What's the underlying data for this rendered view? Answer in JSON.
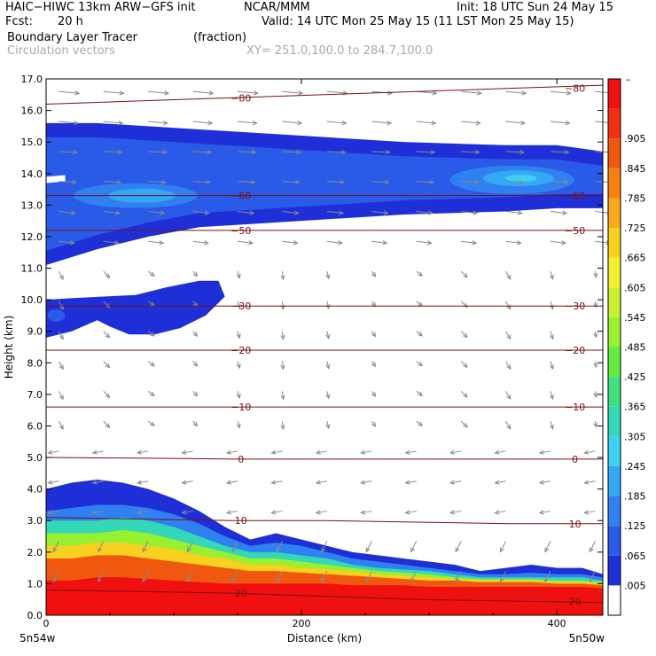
{
  "header": {
    "model": "HAIC−HIWC 13km ARW−GFS init",
    "org": "NCAR/MMM",
    "init": "Init: 18 UTC Sun 24 May 15",
    "fcst_label": "Fcst:",
    "fcst_value": "20 h",
    "valid": "Valid: 14 UTC Mon 25 May 15 (11 LST Mon 25 May 15)",
    "field": "Boundary Layer Tracer",
    "field_units": "(fraction)",
    "vectors": "Circulation vectors",
    "xy": "XY= 251.0,100.0 to 284.7,100.0"
  },
  "chart_data": {
    "type": "heatmap",
    "title": "Boundary Layer Tracer (fraction)",
    "xlabel": "Distance (km)",
    "ylabel": "Height (km)",
    "xlim": [
      0,
      436
    ],
    "ylim": [
      0,
      17
    ],
    "x_ticks": [
      "0",
      "200",
      "400"
    ],
    "y_ticks": [
      "0.0",
      "1.0",
      "2.0",
      "3.0",
      "4.0",
      "5.0",
      "6.0",
      "7.0",
      "8.0",
      "9.0",
      "10.0",
      "11.0",
      "12.0",
      "13.0",
      "14.0",
      "15.0",
      "16.0",
      "17.0"
    ],
    "x_end_labels": {
      "left": "5n54w",
      "right": "5n50w"
    },
    "colorbar_labels": [
      ".005",
      ".065",
      ".125",
      ".185",
      ".245",
      ".305",
      ".365",
      ".425",
      ".485",
      ".545",
      ".605",
      ".665",
      ".725",
      ".785",
      ".845",
      ".905"
    ],
    "colorbar_top_label": "–",
    "colorbar_colors": [
      "#ffffff",
      "#1f2fd8",
      "#2a5ae8",
      "#2f80f0",
      "#35a8f5",
      "#3dd0f0",
      "#33d8b8",
      "#40e080",
      "#60ec40",
      "#98f030",
      "#c8f030",
      "#f0f030",
      "#f8d020",
      "#f8a818",
      "#f88010",
      "#f05810",
      "#f03010",
      "#f01010"
    ],
    "temperature_contours": [
      {
        "label": "20",
        "z": [
          0.8,
          0.75,
          0.7,
          0.6,
          0.5,
          0.45,
          0.4
        ]
      },
      {
        "label": "10",
        "z": [
          3.1,
          3.05,
          3.0,
          3.0,
          2.95,
          2.9,
          2.9
        ]
      },
      {
        "label": "0",
        "z": [
          5.0,
          4.98,
          4.95,
          4.95,
          4.95,
          4.95,
          4.95
        ]
      },
      {
        "label": "−10",
        "z": [
          6.6,
          6.6,
          6.6,
          6.6,
          6.6,
          6.6,
          6.6
        ]
      },
      {
        "label": "−20",
        "z": [
          8.4,
          8.4,
          8.4,
          8.4,
          8.4,
          8.4,
          8.4
        ]
      },
      {
        "label": "−30",
        "z": [
          9.8,
          9.8,
          9.8,
          9.8,
          9.8,
          9.8,
          9.8
        ]
      },
      {
        "label": "−50",
        "z": [
          12.2,
          12.2,
          12.2,
          12.2,
          12.2,
          12.2,
          12.2
        ]
      },
      {
        "label": "−60",
        "z": [
          13.3,
          13.3,
          13.3,
          13.3,
          13.3,
          13.3,
          13.3
        ]
      },
      {
        "label": "−80",
        "z": [
          16.2,
          16.3,
          16.4,
          16.5,
          16.6,
          16.7,
          16.8
        ]
      }
    ],
    "contour_x": [
      0,
      72,
      145,
      218,
      290,
      363,
      436
    ],
    "tracer_layers": {
      "x": [
        0,
        20,
        40,
        60,
        80,
        100,
        120,
        140,
        160,
        180,
        200,
        220,
        240,
        260,
        280,
        300,
        320,
        340,
        360,
        380,
        400,
        420,
        436
      ],
      "boundary_top": [
        4.0,
        4.2,
        4.3,
        4.2,
        4.0,
        3.7,
        3.3,
        2.8,
        2.4,
        2.6,
        2.4,
        2.2,
        2.0,
        1.9,
        1.8,
        1.7,
        1.6,
        1.4,
        1.5,
        1.6,
        1.5,
        1.5,
        1.3
      ],
      "levels": [
        {
          "value": 0.005,
          "top": [
            4.0,
            4.2,
            4.3,
            4.2,
            4.0,
            3.7,
            3.3,
            2.8,
            2.4,
            2.6,
            2.4,
            2.2,
            2.0,
            1.9,
            1.8,
            1.7,
            1.6,
            1.4,
            1.5,
            1.6,
            1.5,
            1.5,
            1.3
          ]
        },
        {
          "value": 0.125,
          "top": [
            3.3,
            3.4,
            3.5,
            3.5,
            3.4,
            3.2,
            2.9,
            2.5,
            2.2,
            2.3,
            2.2,
            2.0,
            1.8,
            1.7,
            1.6,
            1.5,
            1.4,
            1.3,
            1.3,
            1.35,
            1.3,
            1.3,
            1.2
          ]
        },
        {
          "value": 0.305,
          "top": [
            3.0,
            3.0,
            3.0,
            3.1,
            3.0,
            2.8,
            2.5,
            2.2,
            2.0,
            2.0,
            1.9,
            1.8,
            1.6,
            1.5,
            1.45,
            1.4,
            1.3,
            1.2,
            1.2,
            1.2,
            1.2,
            1.2,
            1.1
          ]
        },
        {
          "value": 0.485,
          "top": [
            2.6,
            2.6,
            2.6,
            2.7,
            2.6,
            2.4,
            2.2,
            2.0,
            1.8,
            1.8,
            1.7,
            1.6,
            1.5,
            1.4,
            1.35,
            1.3,
            1.2,
            1.15,
            1.15,
            1.15,
            1.1,
            1.1,
            1.05
          ]
        },
        {
          "value": 0.665,
          "top": [
            2.2,
            2.2,
            2.3,
            2.3,
            2.2,
            2.1,
            1.9,
            1.8,
            1.6,
            1.6,
            1.5,
            1.45,
            1.4,
            1.3,
            1.25,
            1.2,
            1.15,
            1.1,
            1.1,
            1.1,
            1.05,
            1.05,
            1.0
          ]
        },
        {
          "value": 0.845,
          "top": [
            1.8,
            1.8,
            1.9,
            1.9,
            1.8,
            1.7,
            1.6,
            1.5,
            1.4,
            1.4,
            1.35,
            1.3,
            1.25,
            1.2,
            1.15,
            1.1,
            1.1,
            1.05,
            1.05,
            1.05,
            1.0,
            1.0,
            0.95
          ]
        },
        {
          "value": 0.965,
          "top": [
            1.1,
            1.1,
            1.2,
            1.2,
            1.15,
            1.1,
            1.05,
            1.0,
            1.0,
            1.0,
            1.0,
            1.0,
            0.95,
            0.95,
            0.95,
            0.9,
            0.9,
            0.9,
            0.9,
            0.9,
            0.9,
            0.9,
            0.85
          ]
        }
      ]
    },
    "upper_layer": {
      "x": [
        0,
        40,
        80,
        120,
        160,
        200,
        240,
        280,
        320,
        360,
        400,
        436
      ],
      "bottom": [
        11.1,
        11.6,
        12.0,
        12.3,
        12.4,
        12.5,
        12.6,
        12.7,
        12.75,
        12.8,
        12.9,
        12.9
      ],
      "top": [
        15.6,
        15.6,
        15.5,
        15.4,
        15.3,
        15.2,
        15.1,
        15.0,
        14.95,
        14.9,
        14.9,
        14.7
      ]
    },
    "mid_layer": {
      "x": [
        0,
        20,
        40,
        60,
        80,
        100,
        120,
        140,
        135
      ],
      "bottom": [
        8.8,
        9.0,
        9.3,
        8.9,
        8.9,
        9.0,
        9.3,
        10.0,
        10.6
      ],
      "top": [
        10.0,
        10.1,
        10.1,
        10.2,
        10.3,
        10.4,
        10.5,
        10.6,
        10.6
      ]
    }
  }
}
